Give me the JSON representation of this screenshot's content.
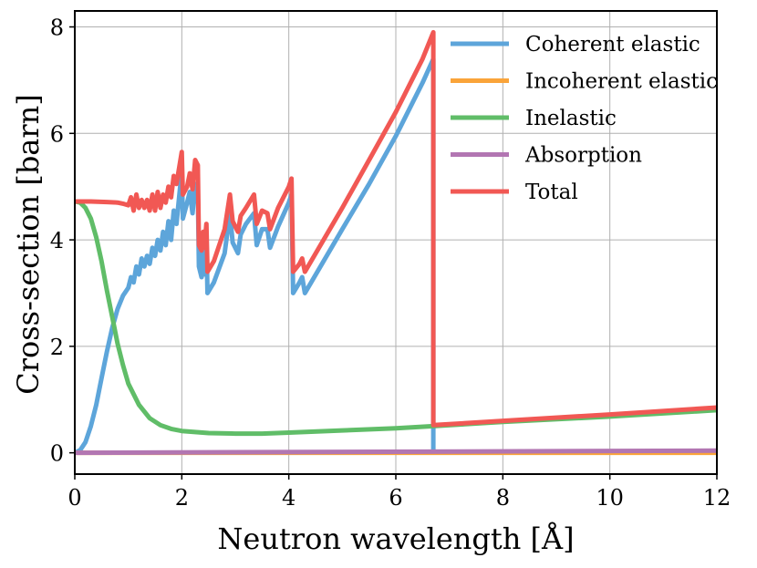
{
  "chart_data": {
    "type": "line",
    "title": "",
    "xlabel": "Neutron wavelength [Å]",
    "ylabel": "Cross-section [barn]",
    "xlim": [
      0,
      12
    ],
    "ylim": [
      -0.4,
      8.3
    ],
    "grid": true,
    "legend_position": "top-right",
    "x_ticks": [
      "0",
      "2",
      "4",
      "6",
      "8",
      "10",
      "12"
    ],
    "y_ticks": [
      "0",
      "2",
      "4",
      "6",
      "8"
    ],
    "x_tick_values": [
      0,
      2,
      4,
      6,
      8,
      10,
      12
    ],
    "y_tick_values": [
      0,
      2,
      4,
      6,
      8
    ],
    "series": [
      {
        "name": "Coherent elastic",
        "color": "#5DA5DA",
        "points": [
          [
            0,
            0
          ],
          [
            0.1,
            0.05
          ],
          [
            0.2,
            0.2
          ],
          [
            0.3,
            0.5
          ],
          [
            0.4,
            0.9
          ],
          [
            0.5,
            1.4
          ],
          [
            0.6,
            1.9
          ],
          [
            0.7,
            2.35
          ],
          [
            0.8,
            2.7
          ],
          [
            0.9,
            2.95
          ],
          [
            1.0,
            3.1
          ],
          [
            1.05,
            3.3
          ],
          [
            1.1,
            3.2
          ],
          [
            1.15,
            3.5
          ],
          [
            1.2,
            3.35
          ],
          [
            1.25,
            3.65
          ],
          [
            1.3,
            3.5
          ],
          [
            1.35,
            3.7
          ],
          [
            1.4,
            3.55
          ],
          [
            1.45,
            3.85
          ],
          [
            1.5,
            3.7
          ],
          [
            1.55,
            4.0
          ],
          [
            1.6,
            3.8
          ],
          [
            1.65,
            4.15
          ],
          [
            1.7,
            3.9
          ],
          [
            1.75,
            4.35
          ],
          [
            1.8,
            4.0
          ],
          [
            1.85,
            4.55
          ],
          [
            1.9,
            4.3
          ],
          [
            1.95,
            4.8
          ],
          [
            2.0,
            5.3
          ],
          [
            2.02,
            4.4
          ],
          [
            2.1,
            4.7
          ],
          [
            2.15,
            4.9
          ],
          [
            2.2,
            4.5
          ],
          [
            2.25,
            5.05
          ],
          [
            2.3,
            4.95
          ],
          [
            2.32,
            3.5
          ],
          [
            2.37,
            3.3
          ],
          [
            2.4,
            3.8
          ],
          [
            2.42,
            3.35
          ],
          [
            2.46,
            4.05
          ],
          [
            2.48,
            3.0
          ],
          [
            2.6,
            3.2
          ],
          [
            2.8,
            3.75
          ],
          [
            2.9,
            4.5
          ],
          [
            2.95,
            3.95
          ],
          [
            3.05,
            3.75
          ],
          [
            3.1,
            4.1
          ],
          [
            3.2,
            4.3
          ],
          [
            3.35,
            4.5
          ],
          [
            3.4,
            3.9
          ],
          [
            3.5,
            4.2
          ],
          [
            3.6,
            4.2
          ],
          [
            3.65,
            3.85
          ],
          [
            3.8,
            4.25
          ],
          [
            4.0,
            4.7
          ],
          [
            4.05,
            4.85
          ],
          [
            4.08,
            3.0
          ],
          [
            4.2,
            3.2
          ],
          [
            4.25,
            3.3
          ],
          [
            4.3,
            3.0
          ],
          [
            5.0,
            4.2
          ],
          [
            5.5,
            5.05
          ],
          [
            6.0,
            5.95
          ],
          [
            6.5,
            6.95
          ],
          [
            6.7,
            7.4
          ],
          [
            6.7,
            0
          ]
        ]
      },
      {
        "name": "Incoherent elastic",
        "color": "#FAA43A",
        "points": [
          [
            0,
            0
          ],
          [
            12,
            0
          ]
        ]
      },
      {
        "name": "Inelastic",
        "color": "#60BD68",
        "points": [
          [
            0,
            4.72
          ],
          [
            0.1,
            4.7
          ],
          [
            0.2,
            4.6
          ],
          [
            0.3,
            4.4
          ],
          [
            0.4,
            4.05
          ],
          [
            0.5,
            3.6
          ],
          [
            0.6,
            3.05
          ],
          [
            0.7,
            2.55
          ],
          [
            0.8,
            2.05
          ],
          [
            0.9,
            1.65
          ],
          [
            1.0,
            1.3
          ],
          [
            1.2,
            0.9
          ],
          [
            1.4,
            0.65
          ],
          [
            1.6,
            0.52
          ],
          [
            1.8,
            0.45
          ],
          [
            2.0,
            0.41
          ],
          [
            2.5,
            0.37
          ],
          [
            3.0,
            0.36
          ],
          [
            3.5,
            0.36
          ],
          [
            4.0,
            0.38
          ],
          [
            5.0,
            0.42
          ],
          [
            6.0,
            0.46
          ],
          [
            6.7,
            0.5
          ],
          [
            8.0,
            0.58
          ],
          [
            10.0,
            0.68
          ],
          [
            12.0,
            0.8
          ]
        ]
      },
      {
        "name": "Absorption",
        "color": "#B276B2",
        "points": [
          [
            0,
            0
          ],
          [
            12,
            0.04
          ]
        ]
      },
      {
        "name": "Total",
        "color": "#F15854",
        "points": [
          [
            0,
            4.72
          ],
          [
            0.3,
            4.72
          ],
          [
            0.6,
            4.71
          ],
          [
            0.8,
            4.7
          ],
          [
            0.9,
            4.68
          ],
          [
            1.0,
            4.65
          ],
          [
            1.05,
            4.8
          ],
          [
            1.1,
            4.55
          ],
          [
            1.15,
            4.85
          ],
          [
            1.2,
            4.6
          ],
          [
            1.25,
            4.75
          ],
          [
            1.3,
            4.6
          ],
          [
            1.35,
            4.75
          ],
          [
            1.4,
            4.55
          ],
          [
            1.45,
            4.85
          ],
          [
            1.5,
            4.55
          ],
          [
            1.55,
            4.9
          ],
          [
            1.6,
            4.6
          ],
          [
            1.65,
            4.85
          ],
          [
            1.7,
            4.7
          ],
          [
            1.75,
            5.0
          ],
          [
            1.8,
            4.8
          ],
          [
            1.85,
            5.2
          ],
          [
            1.9,
            5.05
          ],
          [
            1.95,
            5.35
          ],
          [
            2.0,
            5.65
          ],
          [
            2.02,
            4.85
          ],
          [
            2.1,
            5.0
          ],
          [
            2.15,
            5.25
          ],
          [
            2.2,
            4.95
          ],
          [
            2.25,
            5.5
          ],
          [
            2.3,
            5.4
          ],
          [
            2.32,
            3.9
          ],
          [
            2.37,
            3.8
          ],
          [
            2.4,
            4.15
          ],
          [
            2.42,
            3.85
          ],
          [
            2.46,
            4.3
          ],
          [
            2.48,
            3.4
          ],
          [
            2.6,
            3.6
          ],
          [
            2.8,
            4.2
          ],
          [
            2.9,
            4.85
          ],
          [
            2.95,
            4.35
          ],
          [
            3.05,
            4.15
          ],
          [
            3.1,
            4.45
          ],
          [
            3.2,
            4.6
          ],
          [
            3.35,
            4.85
          ],
          [
            3.4,
            4.3
          ],
          [
            3.5,
            4.55
          ],
          [
            3.6,
            4.5
          ],
          [
            3.65,
            4.2
          ],
          [
            3.8,
            4.6
          ],
          [
            4.0,
            5.0
          ],
          [
            4.05,
            5.15
          ],
          [
            4.08,
            3.4
          ],
          [
            4.2,
            3.55
          ],
          [
            4.25,
            3.65
          ],
          [
            4.3,
            3.4
          ],
          [
            5.0,
            4.6
          ],
          [
            5.5,
            5.5
          ],
          [
            6.0,
            6.4
          ],
          [
            6.5,
            7.4
          ],
          [
            6.7,
            7.9
          ],
          [
            6.7,
            0.52
          ],
          [
            8.0,
            0.6
          ],
          [
            10.0,
            0.72
          ],
          [
            12.0,
            0.85
          ]
        ]
      }
    ]
  }
}
